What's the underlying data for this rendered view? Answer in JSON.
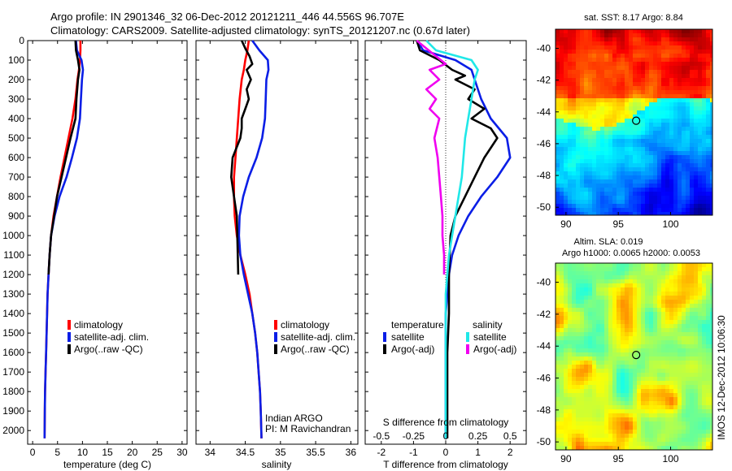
{
  "header": {
    "line1": "Argo profile: IN 2901346_32 06-Dec-2012 20121211_446 44.556S 96.707E",
    "line2": "Climatology: CARS2009. Satellite-adjusted climatology: synTS_20121207.nc (0.67d later)"
  },
  "side_stamp": "IMOS 12-Dec-2012 10:06:30",
  "colors": {
    "red": "#ff0000",
    "blue": "#0a1ee6",
    "black": "#000000",
    "cyan": "#20e8e8",
    "magenta": "#f000f0"
  },
  "chart_data": [
    {
      "type": "line",
      "id": "temperature",
      "xlabel": "temperature (deg C)",
      "xlim": [
        -1,
        31
      ],
      "xticks": [
        0,
        5,
        10,
        15,
        20,
        25,
        30
      ],
      "ylim": [
        0,
        2070
      ],
      "yticks": [
        0,
        100,
        200,
        300,
        400,
        500,
        600,
        700,
        800,
        900,
        1000,
        1100,
        1200,
        1300,
        1400,
        1500,
        1600,
        1700,
        1800,
        1900,
        2000
      ],
      "legend": [
        "climatology",
        "satellite-adj. clim.",
        "Argo(..raw -QC)"
      ],
      "legend_position": "lower-center",
      "series": [
        {
          "name": "climatology",
          "color": "red",
          "x": [
            9.6,
            9.6,
            9.5,
            9.3,
            9.0,
            8.6,
            8.0,
            7.2,
            6.4,
            5.6,
            4.9,
            4.2,
            3.7,
            3.4,
            3.2,
            3.0,
            2.9,
            2.8,
            2.7,
            2.6,
            2.5,
            2.45,
            2.4
          ],
          "y": [
            0,
            50,
            100,
            150,
            200,
            300,
            400,
            500,
            600,
            700,
            800,
            900,
            1000,
            1100,
            1200,
            1300,
            1400,
            1500,
            1600,
            1700,
            1800,
            1900,
            2040
          ]
        },
        {
          "name": "satellite-adj. clim.",
          "color": "blue",
          "x": [
            8.7,
            8.9,
            9.8,
            10.1,
            9.9,
            9.7,
            9.5,
            8.9,
            7.9,
            6.8,
            5.4,
            4.4,
            3.7,
            3.4,
            3.2,
            3.0,
            2.9,
            2.8,
            2.7,
            2.6,
            2.5,
            2.45,
            2.4
          ],
          "y": [
            0,
            50,
            100,
            150,
            200,
            300,
            400,
            500,
            600,
            700,
            800,
            900,
            1000,
            1100,
            1200,
            1300,
            1400,
            1500,
            1600,
            1700,
            1800,
            1900,
            2040
          ]
        },
        {
          "name": "Argo(..raw -QC)",
          "color": "black",
          "x": [
            8.6,
            8.7,
            9.1,
            9.4,
            9.1,
            8.8,
            8.6,
            7.6,
            6.7,
            5.8,
            4.9,
            4.3,
            3.7,
            3.4,
            3.2
          ],
          "y": [
            0,
            50,
            100,
            150,
            200,
            300,
            400,
            500,
            600,
            700,
            800,
            900,
            1000,
            1100,
            1200
          ]
        }
      ]
    },
    {
      "type": "line",
      "id": "salinity",
      "xlabel": "salinity",
      "xlim": [
        33.8,
        36.1
      ],
      "xticks": [
        34,
        34.5,
        35,
        35.5,
        36
      ],
      "ylim": [
        0,
        2070
      ],
      "legend": [
        "climatology",
        "satellite-adj. clim.",
        "Argo(..raw -QC)"
      ],
      "legend_position": "lower-right",
      "annotations": [
        "Indian ARGO",
        "PI: M Ravichandran"
      ],
      "series": [
        {
          "name": "climatology",
          "color": "red",
          "x": [
            34.55,
            34.53,
            34.5,
            34.48,
            34.45,
            34.42,
            34.4,
            34.38,
            34.36,
            34.34,
            34.34,
            34.35,
            34.38,
            34.43,
            34.5,
            34.56,
            34.6,
            34.64,
            34.67,
            34.69,
            34.71,
            34.72,
            34.73
          ],
          "y": [
            0,
            50,
            100,
            150,
            200,
            300,
            400,
            500,
            600,
            700,
            800,
            900,
            1000,
            1100,
            1200,
            1300,
            1400,
            1500,
            1600,
            1700,
            1800,
            1900,
            2040
          ]
        },
        {
          "name": "satellite-adj. clim.",
          "color": "blue",
          "x": [
            34.6,
            34.7,
            34.82,
            34.83,
            34.8,
            34.79,
            34.78,
            34.74,
            34.66,
            34.55,
            34.47,
            34.42,
            34.41,
            34.43,
            34.48,
            34.54,
            34.6,
            34.64,
            34.67,
            34.69,
            34.71,
            34.72,
            34.73
          ],
          "y": [
            0,
            50,
            100,
            150,
            200,
            300,
            400,
            500,
            600,
            700,
            800,
            900,
            1000,
            1100,
            1200,
            1300,
            1400,
            1500,
            1600,
            1700,
            1800,
            1900,
            2040
          ]
        },
        {
          "name": "Argo(..raw -QC)",
          "color": "black",
          "x": [
            34.45,
            34.5,
            34.56,
            34.6,
            34.52,
            34.58,
            34.52,
            34.55,
            34.5,
            34.45,
            34.45,
            34.43,
            34.32,
            34.3,
            34.34,
            34.38,
            34.4
          ],
          "y": [
            0,
            40,
            80,
            120,
            150,
            200,
            250,
            300,
            350,
            400,
            450,
            500,
            600,
            700,
            800,
            900,
            1200
          ]
        }
      ]
    },
    {
      "type": "line",
      "id": "difference",
      "xlabel": "T difference from climatology",
      "xlabel_top": "S difference from climatology",
      "xlim": [
        -2.5,
        2.5
      ],
      "xticks": [
        -2,
        -1,
        0,
        1,
        2
      ],
      "x2ticks": [
        -0.5,
        -0.25,
        0,
        0.25,
        0.5
      ],
      "ylim": [
        0,
        2070
      ],
      "legend_titles": [
        "temperature",
        "salinity"
      ],
      "legend": [
        "satellite",
        "Argo(-adj)",
        "satellite",
        "Argo(-adj)"
      ],
      "legend_position": "lower-center",
      "series": [
        {
          "name": "satellite",
          "color": "blue",
          "x": [
            -0.9,
            -0.7,
            0.3,
            0.8,
            0.9,
            1.1,
            1.4,
            1.9,
            2.0,
            1.6,
            1.1,
            0.7,
            0.4,
            0.2,
            0.1,
            0.05,
            0.0,
            0.0,
            0.0,
            0.0,
            0.0
          ],
          "y": [
            0,
            50,
            100,
            150,
            200,
            300,
            400,
            500,
            600,
            700,
            800,
            900,
            1000,
            1100,
            1200,
            1300,
            1400,
            1500,
            1600,
            1800,
            2040
          ]
        },
        {
          "name": "Argo(-adj)",
          "color": "black",
          "x": [
            -0.9,
            -0.8,
            -0.2,
            0.2,
            0.6,
            0.3,
            0.9,
            0.7,
            1.2,
            0.8,
            1.4,
            1.6,
            1.2,
            0.9,
            0.6,
            0.3,
            0.15,
            0.1,
            0.1,
            0.05,
            0.05,
            0.05
          ],
          "y": [
            0,
            50,
            100,
            150,
            180,
            200,
            250,
            300,
            350,
            400,
            450,
            500,
            600,
            700,
            800,
            900,
            1000,
            1200,
            1400,
            1600,
            1800,
            2040
          ]
        },
        {
          "name": "satellite",
          "color": "cyan",
          "x": [
            -0.6,
            -0.3,
            0.8,
            1.0,
            0.9,
            0.8,
            0.7,
            0.6,
            0.55,
            0.5,
            0.4,
            0.3,
            0.2,
            0.1,
            0.05,
            0.0,
            0.0,
            0.0
          ],
          "y": [
            0,
            50,
            100,
            150,
            200,
            300,
            400,
            500,
            600,
            700,
            800,
            900,
            1000,
            1100,
            1200,
            1300,
            1500,
            2040
          ]
        },
        {
          "name": "Argo(-adj)",
          "color": "magenta",
          "x": [
            -0.9,
            -0.6,
            -0.3,
            0.0,
            -0.5,
            -0.2,
            -0.6,
            -0.3,
            -0.5,
            -0.2,
            -0.35,
            -0.25,
            -0.2,
            -0.15,
            -0.1,
            -0.1,
            -0.05,
            -0.05
          ],
          "y": [
            0,
            40,
            80,
            120,
            150,
            200,
            250,
            300,
            350,
            400,
            500,
            600,
            700,
            800,
            900,
            1000,
            1100,
            1200
          ]
        }
      ]
    },
    {
      "type": "heatmap",
      "id": "sst_map",
      "title": "sat. SST: 8.17  Argo: 8.84",
      "xticks": [
        90,
        95,
        100
      ],
      "xlim": [
        89,
        104
      ],
      "yticks": [
        -40,
        -42,
        -44,
        -46,
        -48,
        -50
      ],
      "ylim": [
        -50.5,
        -38.8
      ],
      "marker": {
        "lon": 96.707,
        "lat": -44.556
      },
      "colormap": "jet"
    },
    {
      "type": "heatmap",
      "id": "sla_map",
      "title": "Altim. SLA: 0.019",
      "subtitle": "Argo h1000: 0.0065 h2000: 0.0053",
      "xticks": [
        90,
        95,
        100
      ],
      "xlim": [
        89,
        104
      ],
      "yticks": [
        -40,
        -42,
        -44,
        -46,
        -48,
        -50
      ],
      "ylim": [
        -50.5,
        -38.8
      ],
      "marker": {
        "lon": 96.707,
        "lat": -44.556
      },
      "colormap": "jet"
    }
  ]
}
